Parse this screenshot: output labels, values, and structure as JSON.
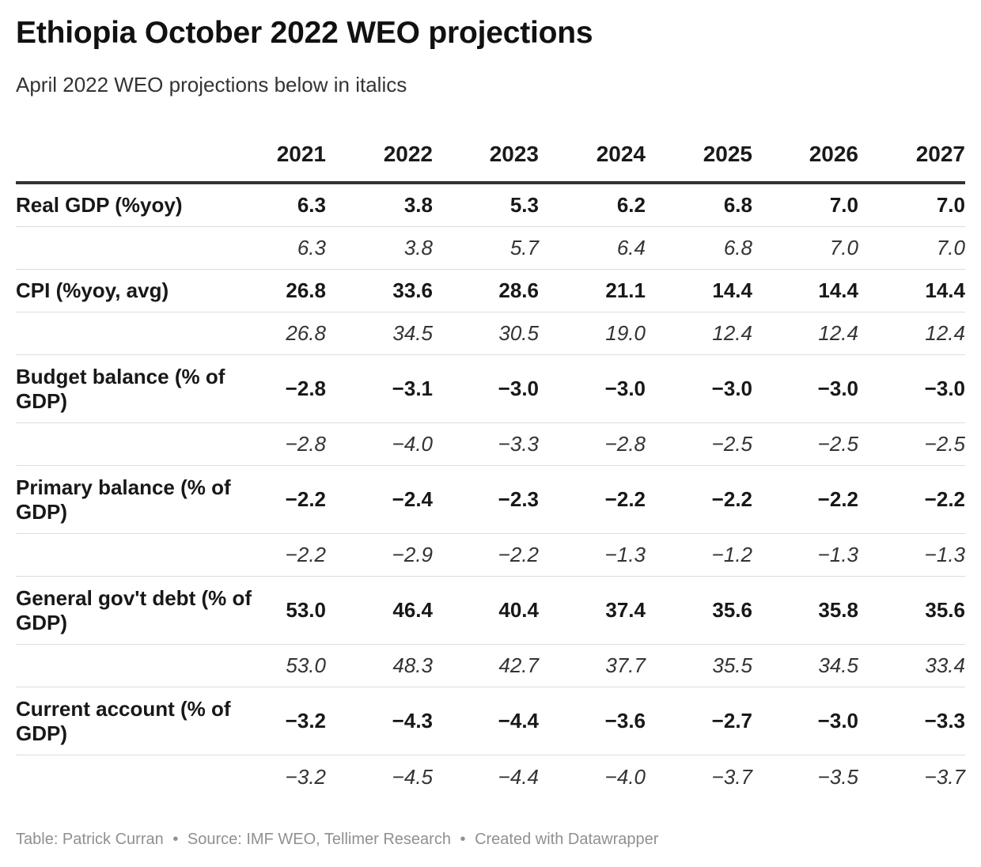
{
  "title": "Ethiopia October 2022 WEO projections",
  "subtitle": "April 2022 WEO projections below in italics",
  "footer": {
    "table_credit": "Table: Patrick Curran",
    "source": "Source: IMF WEO, Tellimer Research",
    "created_with": "Created with Datawrapper",
    "separator": "•"
  },
  "chart_data": {
    "type": "table",
    "title": "Ethiopia October 2022 WEO projections",
    "subtitle": "April 2022 WEO projections below in italics",
    "columns": [
      "2021",
      "2022",
      "2023",
      "2024",
      "2025",
      "2026",
      "2027"
    ],
    "rows": [
      {
        "label": "Real GDP (%yoy)",
        "october_2022": [
          "6.3",
          "3.8",
          "5.3",
          "6.2",
          "6.8",
          "7.0",
          "7.0"
        ],
        "april_2022": [
          "6.3",
          "3.8",
          "5.7",
          "6.4",
          "6.8",
          "7.0",
          "7.0"
        ]
      },
      {
        "label": "CPI (%yoy, avg)",
        "october_2022": [
          "26.8",
          "33.6",
          "28.6",
          "21.1",
          "14.4",
          "14.4",
          "14.4"
        ],
        "april_2022": [
          "26.8",
          "34.5",
          "30.5",
          "19.0",
          "12.4",
          "12.4",
          "12.4"
        ]
      },
      {
        "label": "Budget balance (% of GDP)",
        "october_2022": [
          "−2.8",
          "−3.1",
          "−3.0",
          "−3.0",
          "−3.0",
          "−3.0",
          "−3.0"
        ],
        "april_2022": [
          "−2.8",
          "−4.0",
          "−3.3",
          "−2.8",
          "−2.5",
          "−2.5",
          "−2.5"
        ]
      },
      {
        "label": "Primary balance (% of GDP)",
        "october_2022": [
          "−2.2",
          "−2.4",
          "−2.3",
          "−2.2",
          "−2.2",
          "−2.2",
          "−2.2"
        ],
        "april_2022": [
          "−2.2",
          "−2.9",
          "−2.2",
          "−1.3",
          "−1.2",
          "−1.3",
          "−1.3"
        ]
      },
      {
        "label": "General gov't debt (% of GDP)",
        "october_2022": [
          "53.0",
          "46.4",
          "40.4",
          "37.4",
          "35.6",
          "35.8",
          "35.6"
        ],
        "april_2022": [
          "53.0",
          "48.3",
          "42.7",
          "37.7",
          "35.5",
          "34.5",
          "33.4"
        ]
      },
      {
        "label": "Current account (% of GDP)",
        "october_2022": [
          "−3.2",
          "−4.3",
          "−4.4",
          "−3.6",
          "−2.7",
          "−3.0",
          "−3.3"
        ],
        "april_2022": [
          "−3.2",
          "−4.5",
          "−4.4",
          "−4.0",
          "−3.7",
          "−3.5",
          "−3.7"
        ]
      }
    ]
  }
}
